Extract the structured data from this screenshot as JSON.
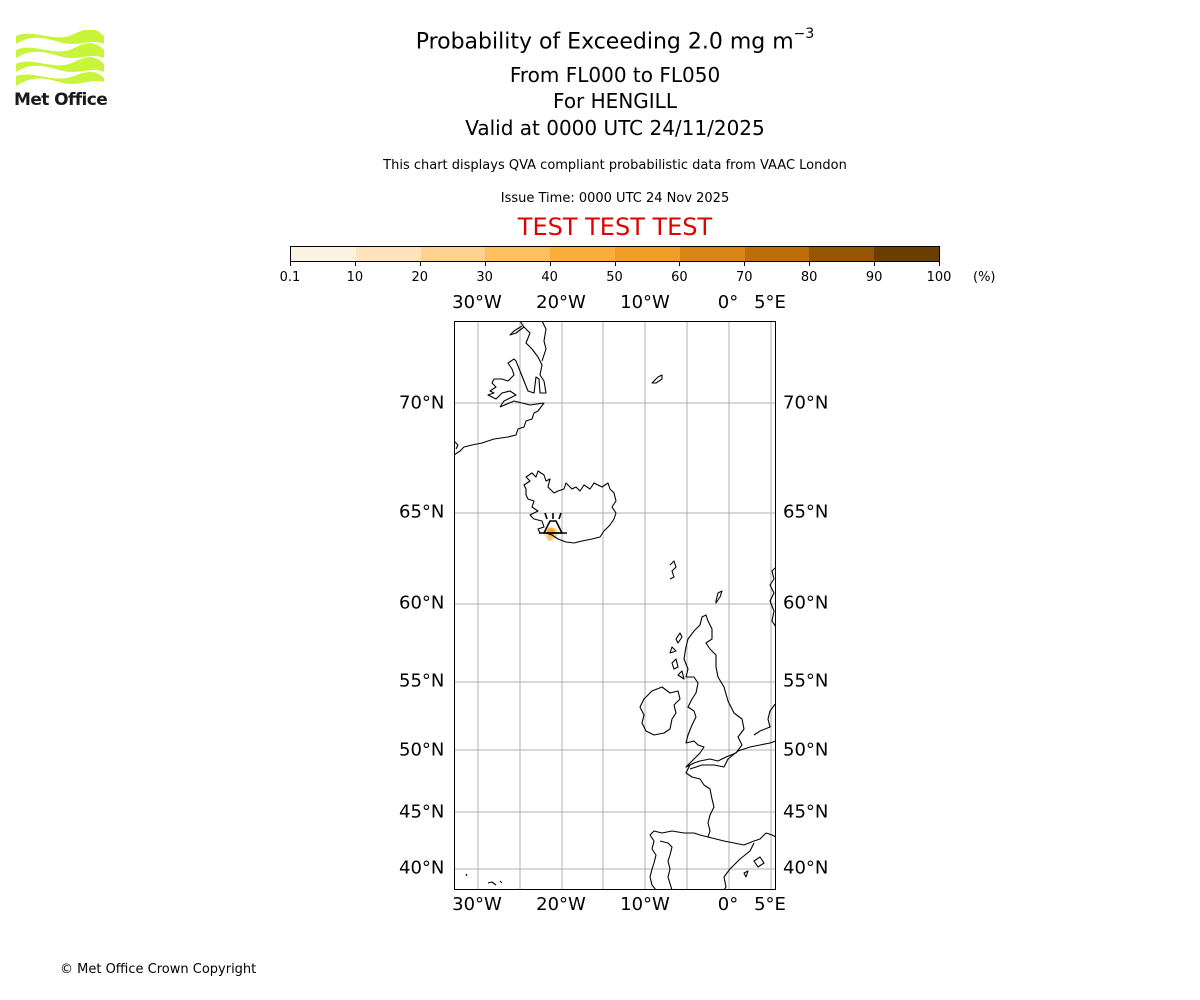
{
  "logo": {
    "name": "Met Office",
    "wave_color": "#c8f53c"
  },
  "titles": {
    "main_prefix": "Probability of Exceeding 2.0 mg m",
    "main_exponent": "−3",
    "flight_levels": "From FL000 to FL050",
    "volcano": "For HENGILL",
    "valid_time": "Valid at 0000 UTC 24/11/2025",
    "description": "This chart displays QVA compliant probabilistic data from VAAC London",
    "issue_time": "Issue Time: 0000 UTC 24 Nov 2025",
    "test_banner": "TEST TEST TEST",
    "test_color": "#e00000"
  },
  "colorbar": {
    "unit": "(%)",
    "ticks": [
      "0.1",
      "10",
      "20",
      "30",
      "40",
      "50",
      "60",
      "70",
      "80",
      "90",
      "100"
    ],
    "colors": [
      "#fdf3e3",
      "#fee3bd",
      "#fdd190",
      "#fdc05f",
      "#fcae3a",
      "#f29e24",
      "#da8516",
      "#bd6e06",
      "#955702",
      "#683e04"
    ]
  },
  "map": {
    "lon_labels": [
      "30°W",
      "20°W",
      "10°W",
      "0°",
      "5°E"
    ],
    "lat_labels": [
      "70°N",
      "65°N",
      "60°N",
      "55°N",
      "50°N",
      "45°N",
      "40°N"
    ],
    "gridline_color": "#b0b0b0",
    "volcano_marker": "HENGILL"
  },
  "chart_data": {
    "type": "heatmap",
    "title": "Probability of Exceeding 2.0 mg m^-3",
    "subtitle": [
      "From FL000 to FL050",
      "For HENGILL",
      "Valid at 0000 UTC 24/11/2025"
    ],
    "colorbar_levels": [
      0.1,
      10,
      20,
      30,
      40,
      50,
      60,
      70,
      80,
      90,
      100
    ],
    "colorbar_unit": "%",
    "extent": {
      "lon": [
        -33,
        5.5
      ],
      "lat": [
        38.5,
        73.5
      ]
    },
    "lon_ticks": [
      -30,
      -20,
      -10,
      0,
      5
    ],
    "lat_ticks": [
      70,
      65,
      60,
      55,
      50,
      45,
      40
    ],
    "grid": true,
    "features": [
      {
        "name": "HENGILL volcano marker",
        "lon": -21.3,
        "lat": 64.1
      },
      {
        "name": "ash probability area",
        "lon": -21.3,
        "lat": 63.9,
        "value_range": "10-40%"
      }
    ]
  },
  "footer": {
    "copyright": "© Met Office Crown Copyright"
  }
}
